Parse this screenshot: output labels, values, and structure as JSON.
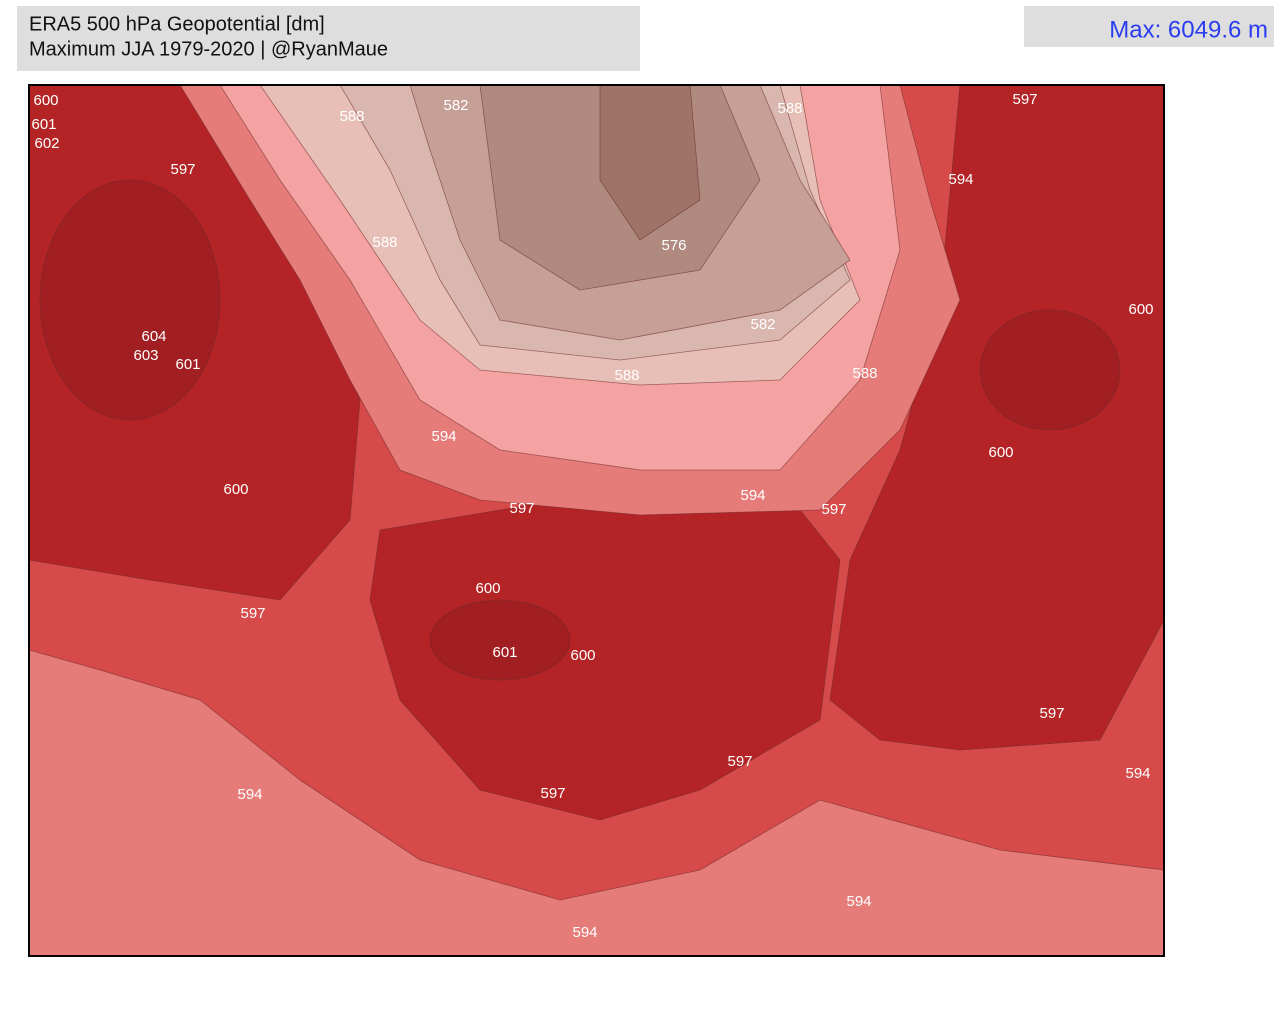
{
  "header": {
    "title_line1": "ERA5 500 hPa Geopotential [dm]",
    "title_line2": "Maximum JJA 1979-2020 | @RyanMaue",
    "max_label": "Max: 6049.6 m"
  },
  "contour_labels": [
    "600",
    "601",
    "602",
    "597",
    "588",
    "582",
    "588",
    "597",
    "594",
    "588",
    "576",
    "600",
    "582",
    "604",
    "603",
    "601",
    "588",
    "588",
    "594",
    "600",
    "600",
    "594",
    "597",
    "597",
    "600",
    "597",
    "601",
    "600",
    "597",
    "597",
    "594",
    "594",
    "597",
    "594",
    "594"
  ]
}
